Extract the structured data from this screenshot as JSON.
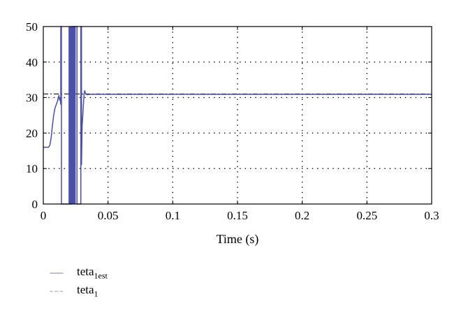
{
  "chart_data": {
    "type": "line",
    "title": "",
    "xlabel": "Time (s)",
    "ylabel": "",
    "xlim": [
      0,
      0.3
    ],
    "ylim": [
      0,
      50
    ],
    "x_ticks": [
      0,
      0.05,
      0.1,
      0.15,
      0.2,
      0.25,
      0.3
    ],
    "x_tick_labels": [
      "0",
      "0.05",
      "0.1",
      "0.15",
      "0.2",
      "0.25",
      "0.3"
    ],
    "y_ticks": [
      0,
      10,
      20,
      30,
      40,
      50
    ],
    "y_tick_labels": [
      "0",
      "10",
      "20",
      "30",
      "40",
      "50"
    ],
    "grid": true,
    "legend_position": "bottom-left, below plot",
    "series": [
      {
        "name": "teta1est",
        "label_base": "teta",
        "label_sub": "1est",
        "color": "#4b4fa8",
        "style": "solid",
        "x": [
          0,
          0.004,
          0.005,
          0.006,
          0.007,
          0.008,
          0.009,
          0.01,
          0.011,
          0.0115,
          0.012,
          0.0125,
          0.013,
          0.0135,
          0.0135,
          0.014,
          0.014,
          0.0145,
          0.015,
          0.016,
          0.017,
          0.018,
          0.019,
          0.02,
          0.021,
          0.022,
          0.022,
          0.026,
          0.026,
          0.027,
          0.028,
          0.029,
          0.029,
          0.0295,
          0.0295,
          0.03,
          0.0305,
          0.031,
          0.0315,
          0.032,
          0.0325,
          0.033,
          0.034,
          0.036,
          0.04,
          0.05,
          0.1,
          0.15,
          0.2,
          0.25,
          0.3
        ],
        "y": [
          16,
          16,
          16.5,
          18.5,
          22,
          25,
          27,
          28,
          29,
          30,
          30.5,
          29.5,
          30,
          28,
          50,
          50,
          0,
          0,
          0,
          0,
          0,
          0,
          0,
          0,
          0,
          0,
          50,
          50,
          0,
          0,
          0,
          0,
          50,
          50,
          11,
          22,
          25,
          28,
          31,
          32,
          31.2,
          30.9,
          30.8,
          30.9,
          30.9,
          30.9,
          30.9,
          30.9,
          30.9,
          30.9,
          30.9
        ]
      },
      {
        "name": "teta1",
        "label_base": "teta",
        "label_sub": "1",
        "color": "#222222",
        "style": "dash-dot",
        "x": [
          0,
          0.3
        ],
        "y": [
          31,
          31
        ]
      }
    ]
  }
}
